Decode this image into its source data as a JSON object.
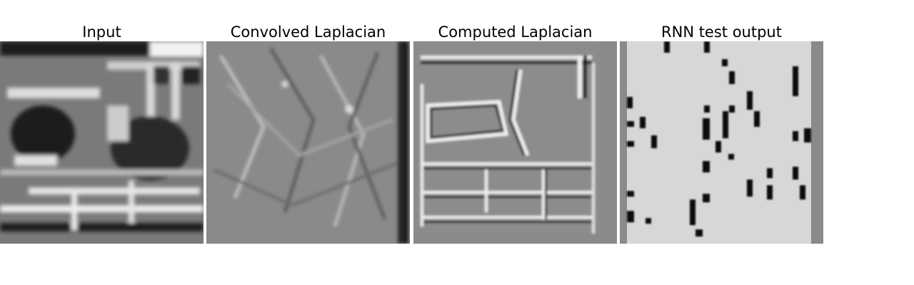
{
  "figure": {
    "panels": [
      {
        "title": "Input",
        "content": "grayscale-image"
      },
      {
        "title": "Convolved Laplacian",
        "content": "laplacian-filter-response"
      },
      {
        "title": "Computed Laplacian",
        "content": "edge-map"
      },
      {
        "title": "RNN test output",
        "content": "sparse-prediction-map"
      }
    ]
  },
  "colors": {
    "background": "#ffffff",
    "flat_gray": "#8a8a8a",
    "light_gray": "#d7d7d7",
    "dark": "#111111"
  }
}
